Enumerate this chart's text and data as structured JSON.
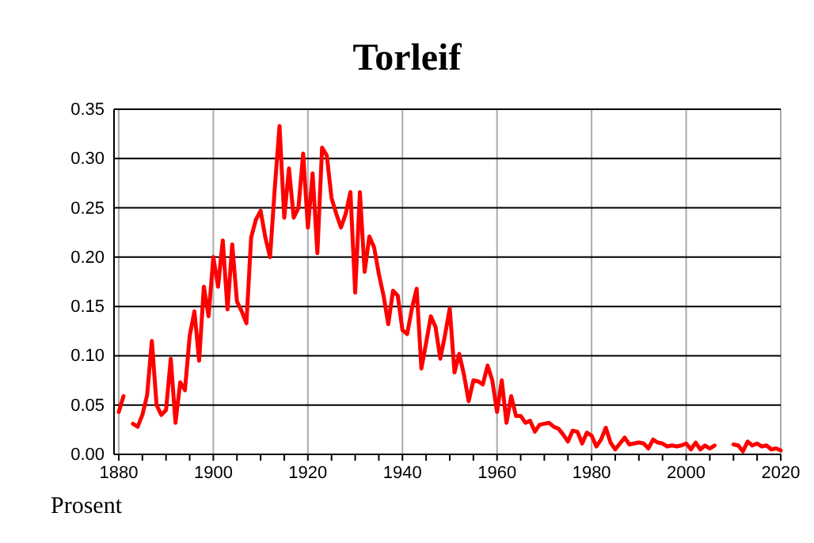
{
  "chart_data": {
    "type": "line",
    "title": "Torleif",
    "ylabel": "Prosent",
    "x": [
      1880,
      1881,
      1882,
      1883,
      1884,
      1885,
      1886,
      1887,
      1888,
      1889,
      1890,
      1891,
      1892,
      1893,
      1894,
      1895,
      1896,
      1897,
      1898,
      1899,
      1900,
      1901,
      1902,
      1903,
      1904,
      1905,
      1906,
      1907,
      1908,
      1909,
      1910,
      1911,
      1912,
      1913,
      1914,
      1915,
      1916,
      1917,
      1918,
      1919,
      1920,
      1921,
      1922,
      1923,
      1924,
      1925,
      1926,
      1927,
      1928,
      1929,
      1930,
      1931,
      1932,
      1933,
      1934,
      1935,
      1936,
      1937,
      1938,
      1939,
      1940,
      1941,
      1942,
      1943,
      1944,
      1945,
      1946,
      1947,
      1948,
      1949,
      1950,
      1951,
      1952,
      1953,
      1954,
      1955,
      1956,
      1957,
      1958,
      1959,
      1960,
      1961,
      1962,
      1963,
      1964,
      1965,
      1966,
      1967,
      1968,
      1969,
      1970,
      1971,
      1972,
      1973,
      1974,
      1975,
      1976,
      1977,
      1978,
      1979,
      1980,
      1981,
      1982,
      1983,
      1984,
      1985,
      1986,
      1987,
      1988,
      1989,
      1990,
      1991,
      1992,
      1993,
      1994,
      1995,
      1996,
      1997,
      1998,
      1999,
      2000,
      2001,
      2002,
      2003,
      2004,
      2005,
      2006,
      2007,
      2008,
      2009,
      2010,
      2011,
      2012,
      2013,
      2014,
      2015,
      2016,
      2017,
      2018,
      2019,
      2020
    ],
    "series": [
      {
        "color": "#ff0000",
        "values": [
          0.043,
          0.059,
          null,
          0.031,
          0.028,
          0.04,
          0.06,
          0.115,
          0.05,
          0.04,
          0.045,
          0.097,
          0.032,
          0.073,
          0.065,
          0.12,
          0.145,
          0.095,
          0.17,
          0.14,
          0.2,
          0.17,
          0.217,
          0.147,
          0.213,
          0.155,
          0.145,
          0.133,
          0.22,
          0.238,
          0.247,
          0.22,
          0.2,
          0.27,
          0.333,
          0.24,
          0.29,
          0.24,
          0.25,
          0.305,
          0.23,
          0.285,
          0.204,
          0.311,
          0.303,
          0.26,
          0.244,
          0.23,
          0.244,
          0.266,
          0.164,
          0.266,
          0.185,
          0.221,
          0.21,
          0.183,
          0.161,
          0.132,
          0.166,
          0.161,
          0.126,
          0.122,
          0.148,
          0.168,
          0.087,
          0.113,
          0.14,
          0.129,
          0.097,
          0.121,
          0.148,
          0.083,
          0.102,
          0.081,
          0.054,
          0.075,
          0.074,
          0.071,
          0.09,
          0.075,
          0.043,
          0.075,
          0.032,
          0.059,
          0.039,
          0.039,
          0.032,
          0.034,
          0.023,
          0.03,
          0.031,
          0.032,
          0.028,
          0.026,
          0.02,
          0.013,
          0.024,
          0.023,
          0.011,
          0.022,
          0.019,
          0.008,
          0.015,
          0.027,
          0.012,
          0.005,
          0.011,
          0.017,
          0.01,
          0.011,
          0.012,
          0.011,
          0.006,
          0.015,
          0.012,
          0.011,
          0.008,
          0.009,
          0.008,
          0.009,
          0.011,
          0.005,
          0.012,
          0.005,
          0.009,
          0.006,
          0.009,
          null,
          null,
          null,
          0.01,
          0.009,
          0.003,
          0.013,
          0.009,
          0.011,
          0.008,
          0.009,
          0.005,
          0.006,
          0.004
        ]
      }
    ],
    "xlim": [
      1879,
      2020
    ],
    "xticks": [
      1880,
      {
        "value": 1885,
        "label": null
      },
      {
        "value": 1890,
        "label": null
      },
      {
        "value": 1895,
        "label": null
      },
      1900,
      {
        "value": 1905,
        "label": null
      },
      {
        "value": 1910,
        "label": null
      },
      {
        "value": 1915,
        "label": null
      },
      1920,
      {
        "value": 1925,
        "label": null
      },
      {
        "value": 1930,
        "label": null
      },
      {
        "value": 1935,
        "label": null
      },
      1940,
      {
        "value": 1945,
        "label": null
      },
      {
        "value": 1950,
        "label": null
      },
      {
        "value": 1955,
        "label": null
      },
      1960,
      {
        "value": 1965,
        "label": null
      },
      {
        "value": 1970,
        "label": null
      },
      {
        "value": 1975,
        "label": null
      },
      1980,
      {
        "value": 1985,
        "label": null
      },
      {
        "value": 1990,
        "label": null
      },
      {
        "value": 1995,
        "label": null
      },
      2000,
      {
        "value": 2005,
        "label": null
      },
      {
        "value": 2010,
        "label": null
      },
      {
        "value": 2015,
        "label": null
      },
      2020
    ],
    "ylim": [
      0,
      0.35
    ],
    "yticks": [
      {
        "value": 0,
        "label": "0.00"
      },
      {
        "value": 0.05,
        "label": "0.05"
      },
      {
        "value": 0.1,
        "label": "0.10"
      },
      {
        "value": 0.15,
        "label": "0.15"
      },
      {
        "value": 0.2,
        "label": "0.20"
      },
      {
        "value": 0.25,
        "label": "0.25"
      },
      {
        "value": 0.3,
        "label": "0.30"
      },
      {
        "value": 0.35,
        "label": "0.35"
      }
    ],
    "grid": true,
    "marker": "none",
    "line_style": "solid"
  }
}
